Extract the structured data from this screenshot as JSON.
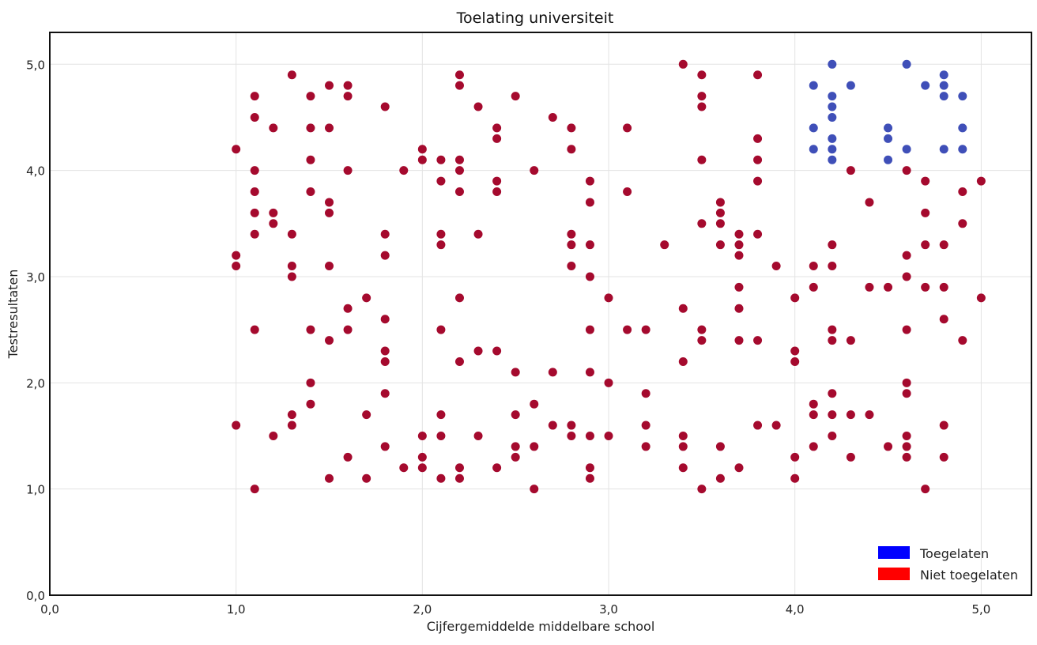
{
  "chart_data": {
    "type": "scatter",
    "title": "Toelating universiteit",
    "xlabel": "Cijfergemiddelde middelbare school",
    "ylabel": "Testresultaten",
    "xlim": [
      0,
      5.27
    ],
    "ylim": [
      0,
      5.3
    ],
    "grid": true,
    "legend_position": "bottom-right",
    "x_ticks": [
      {
        "value": 0,
        "label": "0,0"
      },
      {
        "value": 1,
        "label": "1,0"
      },
      {
        "value": 2,
        "label": "2,0"
      },
      {
        "value": 3,
        "label": "3,0"
      },
      {
        "value": 4,
        "label": "4,0"
      },
      {
        "value": 5,
        "label": "5,0"
      }
    ],
    "y_ticks": [
      {
        "value": 0,
        "label": "0,0"
      },
      {
        "value": 1,
        "label": "1,0"
      },
      {
        "value": 2,
        "label": "2,0"
      },
      {
        "value": 3,
        "label": "3,0"
      },
      {
        "value": 4,
        "label": "4,0"
      },
      {
        "value": 5,
        "label": "5,0"
      }
    ],
    "series": [
      {
        "name": "Toegelaten",
        "color": "#3f4fb8",
        "legend_color": "#0000ff",
        "points": [
          [
            4.1,
            4.8
          ],
          [
            4.1,
            4.4
          ],
          [
            4.1,
            4.2
          ],
          [
            4.2,
            5.0
          ],
          [
            4.2,
            4.7
          ],
          [
            4.2,
            4.6
          ],
          [
            4.2,
            4.5
          ],
          [
            4.2,
            4.3
          ],
          [
            4.2,
            4.2
          ],
          [
            4.2,
            4.1
          ],
          [
            4.3,
            4.8
          ],
          [
            4.5,
            4.4
          ],
          [
            4.5,
            4.3
          ],
          [
            4.5,
            4.1
          ],
          [
            4.6,
            5.0
          ],
          [
            4.6,
            4.2
          ],
          [
            4.7,
            4.8
          ],
          [
            4.8,
            4.9
          ],
          [
            4.8,
            4.8
          ],
          [
            4.8,
            4.7
          ],
          [
            4.8,
            4.2
          ],
          [
            4.9,
            4.7
          ],
          [
            4.9,
            4.4
          ],
          [
            4.9,
            4.2
          ]
        ]
      },
      {
        "name": "Niet toegelaten",
        "color": "#a50a2e",
        "legend_color": "#ff0000",
        "points": [
          [
            1.0,
            4.2
          ],
          [
            1.0,
            3.2
          ],
          [
            1.0,
            3.1
          ],
          [
            1.0,
            1.6
          ],
          [
            1.1,
            4.7
          ],
          [
            1.1,
            4.5
          ],
          [
            1.1,
            4.0
          ],
          [
            1.1,
            3.8
          ],
          [
            1.1,
            3.6
          ],
          [
            1.1,
            3.4
          ],
          [
            1.1,
            2.5
          ],
          [
            1.1,
            1.0
          ],
          [
            1.2,
            4.4
          ],
          [
            1.2,
            3.6
          ],
          [
            1.2,
            3.5
          ],
          [
            1.2,
            1.5
          ],
          [
            1.3,
            4.9
          ],
          [
            1.3,
            3.4
          ],
          [
            1.3,
            3.1
          ],
          [
            1.3,
            3.0
          ],
          [
            1.3,
            1.7
          ],
          [
            1.3,
            1.6
          ],
          [
            1.4,
            4.7
          ],
          [
            1.4,
            4.4
          ],
          [
            1.4,
            4.1
          ],
          [
            1.4,
            3.8
          ],
          [
            1.4,
            2.5
          ],
          [
            1.4,
            2.0
          ],
          [
            1.4,
            1.8
          ],
          [
            1.5,
            4.8
          ],
          [
            1.5,
            4.4
          ],
          [
            1.5,
            3.7
          ],
          [
            1.5,
            3.6
          ],
          [
            1.5,
            3.1
          ],
          [
            1.5,
            2.4
          ],
          [
            1.5,
            1.1
          ],
          [
            1.6,
            4.8
          ],
          [
            1.6,
            4.7
          ],
          [
            1.6,
            4.0
          ],
          [
            1.6,
            2.7
          ],
          [
            1.6,
            2.5
          ],
          [
            1.6,
            1.3
          ],
          [
            1.7,
            2.8
          ],
          [
            1.7,
            1.7
          ],
          [
            1.7,
            1.1
          ],
          [
            1.8,
            4.6
          ],
          [
            1.8,
            3.4
          ],
          [
            1.8,
            3.2
          ],
          [
            1.8,
            2.6
          ],
          [
            1.8,
            2.3
          ],
          [
            1.8,
            2.2
          ],
          [
            1.8,
            1.9
          ],
          [
            1.8,
            1.4
          ],
          [
            1.9,
            4.0
          ],
          [
            1.9,
            1.2
          ],
          [
            2.0,
            4.2
          ],
          [
            2.0,
            4.1
          ],
          [
            2.0,
            1.5
          ],
          [
            2.0,
            1.3
          ],
          [
            2.0,
            1.2
          ],
          [
            2.1,
            4.1
          ],
          [
            2.1,
            3.9
          ],
          [
            2.1,
            3.4
          ],
          [
            2.1,
            3.3
          ],
          [
            2.1,
            2.5
          ],
          [
            2.1,
            1.7
          ],
          [
            2.1,
            1.5
          ],
          [
            2.1,
            1.1
          ],
          [
            2.2,
            4.9
          ],
          [
            2.2,
            4.8
          ],
          [
            2.2,
            4.1
          ],
          [
            2.2,
            4.0
          ],
          [
            2.2,
            3.8
          ],
          [
            2.2,
            2.8
          ],
          [
            2.2,
            2.2
          ],
          [
            2.2,
            1.2
          ],
          [
            2.2,
            1.1
          ],
          [
            2.3,
            4.6
          ],
          [
            2.3,
            3.4
          ],
          [
            2.3,
            2.3
          ],
          [
            2.3,
            1.5
          ],
          [
            2.4,
            4.4
          ],
          [
            2.4,
            4.3
          ],
          [
            2.4,
            3.9
          ],
          [
            2.4,
            3.8
          ],
          [
            2.4,
            2.3
          ],
          [
            2.4,
            1.2
          ],
          [
            2.5,
            4.7
          ],
          [
            2.5,
            2.1
          ],
          [
            2.5,
            1.7
          ],
          [
            2.5,
            1.4
          ],
          [
            2.5,
            1.3
          ],
          [
            2.6,
            4.0
          ],
          [
            2.6,
            1.8
          ],
          [
            2.6,
            1.4
          ],
          [
            2.6,
            1.0
          ],
          [
            2.7,
            4.5
          ],
          [
            2.7,
            2.1
          ],
          [
            2.7,
            1.6
          ],
          [
            2.8,
            4.4
          ],
          [
            2.8,
            4.2
          ],
          [
            2.8,
            3.4
          ],
          [
            2.8,
            3.3
          ],
          [
            2.8,
            3.1
          ],
          [
            2.8,
            1.6
          ],
          [
            2.8,
            1.5
          ],
          [
            2.9,
            3.9
          ],
          [
            2.9,
            3.7
          ],
          [
            2.9,
            3.3
          ],
          [
            2.9,
            3.0
          ],
          [
            2.9,
            2.5
          ],
          [
            2.9,
            2.1
          ],
          [
            2.9,
            1.5
          ],
          [
            2.9,
            1.2
          ],
          [
            2.9,
            1.1
          ],
          [
            3.0,
            2.8
          ],
          [
            3.0,
            2.0
          ],
          [
            3.0,
            1.5
          ],
          [
            3.1,
            4.4
          ],
          [
            3.1,
            3.8
          ],
          [
            3.1,
            2.5
          ],
          [
            3.2,
            2.5
          ],
          [
            3.2,
            1.9
          ],
          [
            3.2,
            1.6
          ],
          [
            3.2,
            1.4
          ],
          [
            3.3,
            3.3
          ],
          [
            3.4,
            5.0
          ],
          [
            3.4,
            2.7
          ],
          [
            3.4,
            2.2
          ],
          [
            3.4,
            1.5
          ],
          [
            3.4,
            1.4
          ],
          [
            3.4,
            1.2
          ],
          [
            3.5,
            4.9
          ],
          [
            3.5,
            4.7
          ],
          [
            3.5,
            4.6
          ],
          [
            3.5,
            4.1
          ],
          [
            3.5,
            3.5
          ],
          [
            3.5,
            2.5
          ],
          [
            3.5,
            2.4
          ],
          [
            3.5,
            1.0
          ],
          [
            3.6,
            3.7
          ],
          [
            3.6,
            3.6
          ],
          [
            3.6,
            3.5
          ],
          [
            3.6,
            3.3
          ],
          [
            3.6,
            1.4
          ],
          [
            3.6,
            1.1
          ],
          [
            3.7,
            3.4
          ],
          [
            3.7,
            3.3
          ],
          [
            3.7,
            3.2
          ],
          [
            3.7,
            2.9
          ],
          [
            3.7,
            2.7
          ],
          [
            3.7,
            2.4
          ],
          [
            3.7,
            1.2
          ],
          [
            3.8,
            4.9
          ],
          [
            3.8,
            4.3
          ],
          [
            3.8,
            4.1
          ],
          [
            3.8,
            3.9
          ],
          [
            3.8,
            3.4
          ],
          [
            3.8,
            2.4
          ],
          [
            3.8,
            1.6
          ],
          [
            3.9,
            3.1
          ],
          [
            3.9,
            1.6
          ],
          [
            4.0,
            2.8
          ],
          [
            4.0,
            2.3
          ],
          [
            4.0,
            2.2
          ],
          [
            4.0,
            1.3
          ],
          [
            4.0,
            1.1
          ],
          [
            4.1,
            3.1
          ],
          [
            4.1,
            2.9
          ],
          [
            4.1,
            1.8
          ],
          [
            4.1,
            1.7
          ],
          [
            4.1,
            1.4
          ],
          [
            4.2,
            3.3
          ],
          [
            4.2,
            3.1
          ],
          [
            4.2,
            2.5
          ],
          [
            4.2,
            2.4
          ],
          [
            4.2,
            1.9
          ],
          [
            4.2,
            1.7
          ],
          [
            4.2,
            1.5
          ],
          [
            4.3,
            4.0
          ],
          [
            4.3,
            2.4
          ],
          [
            4.3,
            1.7
          ],
          [
            4.3,
            1.3
          ],
          [
            4.4,
            3.7
          ],
          [
            4.4,
            2.9
          ],
          [
            4.4,
            1.7
          ],
          [
            4.5,
            2.9
          ],
          [
            4.5,
            1.4
          ],
          [
            4.6,
            4.0
          ],
          [
            4.6,
            3.2
          ],
          [
            4.6,
            3.0
          ],
          [
            4.6,
            2.5
          ],
          [
            4.6,
            2.0
          ],
          [
            4.6,
            1.9
          ],
          [
            4.6,
            1.5
          ],
          [
            4.6,
            1.4
          ],
          [
            4.6,
            1.3
          ],
          [
            4.7,
            3.9
          ],
          [
            4.7,
            3.6
          ],
          [
            4.7,
            3.3
          ],
          [
            4.7,
            2.9
          ],
          [
            4.7,
            1.0
          ],
          [
            4.8,
            3.3
          ],
          [
            4.8,
            2.9
          ],
          [
            4.8,
            2.6
          ],
          [
            4.8,
            1.6
          ],
          [
            4.8,
            1.3
          ],
          [
            4.9,
            3.8
          ],
          [
            4.9,
            3.5
          ],
          [
            4.9,
            2.4
          ],
          [
            5.0,
            3.9
          ],
          [
            5.0,
            2.8
          ]
        ]
      }
    ]
  }
}
